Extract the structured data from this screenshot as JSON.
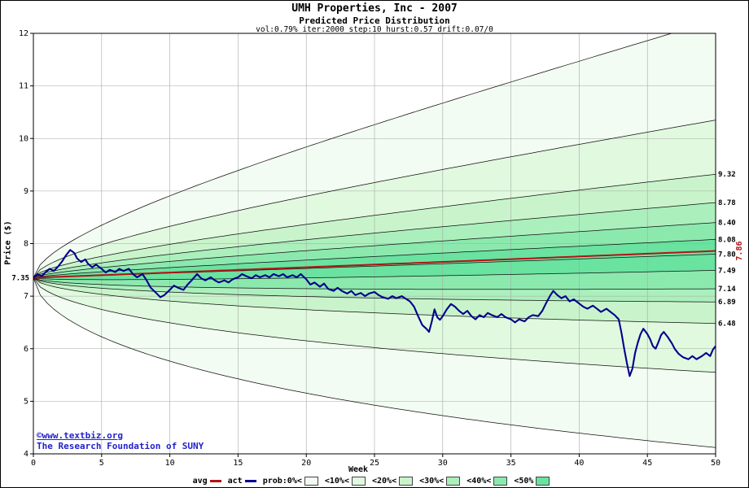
{
  "header": {
    "title": "UMH Properties, Inc - 2007",
    "subtitle": "Predicted Price Distribution",
    "params": "vol:0.79% iter:2000 step:10 hurst:0.57 drift:0.07/0"
  },
  "watermark": {
    "line1": "©www.textbiz.org",
    "line2": "The Research Foundation of SUNY",
    "color": "#2222cc"
  },
  "chart_data": {
    "type": "line",
    "title": "UMH Properties, Inc - 2007",
    "subtitle": "Predicted Price Distribution",
    "xlabel": "Week",
    "ylabel": "Price ($)",
    "xlim": [
      0,
      50
    ],
    "ylim": [
      4,
      12
    ],
    "x_ticks": [
      0,
      5,
      10,
      15,
      20,
      25,
      30,
      35,
      40,
      45,
      50
    ],
    "y_ticks": [
      4,
      5,
      6,
      7,
      8,
      9,
      10,
      11,
      12
    ],
    "grid": true,
    "hurst": 0.57,
    "volatility_pct": 0.79,
    "iterations": 2000,
    "step": 10,
    "drift": "0.07/0",
    "start_price": 7.35,
    "start_label": "7.35",
    "median_end": 7.8,
    "avg": {
      "label": "avg",
      "color": "#b01414",
      "end": 7.86,
      "end_label": "7.86"
    },
    "bands": [
      {
        "label": "prob:0%<",
        "color": "#f3fcf2",
        "upper_end": 12.25,
        "lower_end": 4.12
      },
      {
        "label": "<10%<",
        "color": "#e1f9df",
        "upper_end": 10.35,
        "lower_end": 5.55
      },
      {
        "label": "<20%<",
        "color": "#c9f4cb",
        "upper_end": 9.32,
        "lower_end": 6.48
      },
      {
        "label": "<30%<",
        "color": "#abefbd",
        "upper_end": 8.78,
        "lower_end": 6.89
      },
      {
        "label": "<40%<",
        "color": "#8ce9ae",
        "upper_end": 8.4,
        "lower_end": 7.14
      },
      {
        "label": "<50%",
        "color": "#6ae2a0",
        "upper_end": 8.08,
        "lower_end": 7.49
      }
    ],
    "right_labels": [
      "9.32",
      "8.78",
      "8.40",
      "8.08",
      "7.80",
      "7.49",
      "7.14",
      "6.89",
      "6.48"
    ],
    "actual": {
      "label": "act",
      "color": "#00008b",
      "points": [
        [
          0,
          7.35
        ],
        [
          0.3,
          7.42
        ],
        [
          0.6,
          7.38
        ],
        [
          0.9,
          7.46
        ],
        [
          1.2,
          7.52
        ],
        [
          1.5,
          7.48
        ],
        [
          1.8,
          7.56
        ],
        [
          2.1,
          7.66
        ],
        [
          2.4,
          7.78
        ],
        [
          2.7,
          7.88
        ],
        [
          3.0,
          7.82
        ],
        [
          3.2,
          7.72
        ],
        [
          3.5,
          7.65
        ],
        [
          3.8,
          7.7
        ],
        [
          4.0,
          7.62
        ],
        [
          4.3,
          7.55
        ],
        [
          4.6,
          7.6
        ],
        [
          5.0,
          7.52
        ],
        [
          5.3,
          7.45
        ],
        [
          5.6,
          7.5
        ],
        [
          6.0,
          7.46
        ],
        [
          6.3,
          7.52
        ],
        [
          6.6,
          7.48
        ],
        [
          7.0,
          7.52
        ],
        [
          7.3,
          7.42
        ],
        [
          7.6,
          7.36
        ],
        [
          8.0,
          7.42
        ],
        [
          8.3,
          7.3
        ],
        [
          8.6,
          7.16
        ],
        [
          9.0,
          7.06
        ],
        [
          9.3,
          6.98
        ],
        [
          9.6,
          7.02
        ],
        [
          10.0,
          7.12
        ],
        [
          10.3,
          7.2
        ],
        [
          10.6,
          7.16
        ],
        [
          11.0,
          7.12
        ],
        [
          11.3,
          7.22
        ],
        [
          11.6,
          7.3
        ],
        [
          12.0,
          7.42
        ],
        [
          12.3,
          7.34
        ],
        [
          12.6,
          7.3
        ],
        [
          13.0,
          7.36
        ],
        [
          13.3,
          7.3
        ],
        [
          13.6,
          7.26
        ],
        [
          14.0,
          7.3
        ],
        [
          14.3,
          7.26
        ],
        [
          14.6,
          7.32
        ],
        [
          15.0,
          7.36
        ],
        [
          15.3,
          7.42
        ],
        [
          15.6,
          7.38
        ],
        [
          16.0,
          7.34
        ],
        [
          16.3,
          7.4
        ],
        [
          16.6,
          7.36
        ],
        [
          17.0,
          7.4
        ],
        [
          17.3,
          7.36
        ],
        [
          17.6,
          7.42
        ],
        [
          18.0,
          7.38
        ],
        [
          18.3,
          7.42
        ],
        [
          18.6,
          7.36
        ],
        [
          19.0,
          7.4
        ],
        [
          19.3,
          7.36
        ],
        [
          19.6,
          7.42
        ],
        [
          20.0,
          7.32
        ],
        [
          20.3,
          7.22
        ],
        [
          20.6,
          7.26
        ],
        [
          21.0,
          7.18
        ],
        [
          21.3,
          7.24
        ],
        [
          21.6,
          7.14
        ],
        [
          22.0,
          7.1
        ],
        [
          22.3,
          7.16
        ],
        [
          22.6,
          7.1
        ],
        [
          23.0,
          7.05
        ],
        [
          23.3,
          7.1
        ],
        [
          23.6,
          7.02
        ],
        [
          24.0,
          7.06
        ],
        [
          24.3,
          7.0
        ],
        [
          24.6,
          7.05
        ],
        [
          25.0,
          7.08
        ],
        [
          25.3,
          7.02
        ],
        [
          25.6,
          6.98
        ],
        [
          26.0,
          6.95
        ],
        [
          26.3,
          7.0
        ],
        [
          26.6,
          6.96
        ],
        [
          27.0,
          7.0
        ],
        [
          27.3,
          6.95
        ],
        [
          27.6,
          6.9
        ],
        [
          27.9,
          6.8
        ],
        [
          28.2,
          6.62
        ],
        [
          28.5,
          6.45
        ],
        [
          28.8,
          6.38
        ],
        [
          29.0,
          6.32
        ],
        [
          29.2,
          6.52
        ],
        [
          29.4,
          6.75
        ],
        [
          29.6,
          6.6
        ],
        [
          29.8,
          6.55
        ],
        [
          30.0,
          6.62
        ],
        [
          30.3,
          6.75
        ],
        [
          30.6,
          6.85
        ],
        [
          30.9,
          6.8
        ],
        [
          31.2,
          6.72
        ],
        [
          31.5,
          6.66
        ],
        [
          31.8,
          6.72
        ],
        [
          32.1,
          6.62
        ],
        [
          32.4,
          6.56
        ],
        [
          32.7,
          6.64
        ],
        [
          33.0,
          6.6
        ],
        [
          33.3,
          6.68
        ],
        [
          33.6,
          6.64
        ],
        [
          34.0,
          6.6
        ],
        [
          34.3,
          6.66
        ],
        [
          34.6,
          6.6
        ],
        [
          35.0,
          6.56
        ],
        [
          35.3,
          6.5
        ],
        [
          35.6,
          6.56
        ],
        [
          36.0,
          6.52
        ],
        [
          36.3,
          6.6
        ],
        [
          36.6,
          6.64
        ],
        [
          37.0,
          6.62
        ],
        [
          37.3,
          6.72
        ],
        [
          37.6,
          6.88
        ],
        [
          37.9,
          7.02
        ],
        [
          38.1,
          7.1
        ],
        [
          38.4,
          7.02
        ],
        [
          38.7,
          6.96
        ],
        [
          39.0,
          7.0
        ],
        [
          39.3,
          6.9
        ],
        [
          39.6,
          6.94
        ],
        [
          40.0,
          6.86
        ],
        [
          40.3,
          6.8
        ],
        [
          40.6,
          6.76
        ],
        [
          41.0,
          6.82
        ],
        [
          41.3,
          6.76
        ],
        [
          41.6,
          6.7
        ],
        [
          42.0,
          6.76
        ],
        [
          42.3,
          6.7
        ],
        [
          42.6,
          6.64
        ],
        [
          42.9,
          6.56
        ],
        [
          43.1,
          6.3
        ],
        [
          43.3,
          6.0
        ],
        [
          43.5,
          5.72
        ],
        [
          43.7,
          5.48
        ],
        [
          43.9,
          5.62
        ],
        [
          44.1,
          5.92
        ],
        [
          44.3,
          6.12
        ],
        [
          44.5,
          6.28
        ],
        [
          44.7,
          6.38
        ],
        [
          45.0,
          6.28
        ],
        [
          45.2,
          6.18
        ],
        [
          45.4,
          6.05
        ],
        [
          45.6,
          6.0
        ],
        [
          45.8,
          6.12
        ],
        [
          46.0,
          6.26
        ],
        [
          46.2,
          6.32
        ],
        [
          46.5,
          6.22
        ],
        [
          46.8,
          6.1
        ],
        [
          47.0,
          6.0
        ],
        [
          47.3,
          5.9
        ],
        [
          47.6,
          5.84
        ],
        [
          48.0,
          5.8
        ],
        [
          48.3,
          5.86
        ],
        [
          48.6,
          5.8
        ],
        [
          49.0,
          5.86
        ],
        [
          49.3,
          5.92
        ],
        [
          49.6,
          5.86
        ],
        [
          49.8,
          5.98
        ],
        [
          50.0,
          6.05
        ]
      ]
    }
  },
  "legend": {
    "items": [
      {
        "label": "avg",
        "type": "line",
        "color": "#b01414"
      },
      {
        "label": "act",
        "type": "line",
        "color": "#00008b"
      },
      {
        "label": "prob:0%<",
        "type": "box",
        "color": "#f3fcf2"
      },
      {
        "label": "<10%<",
        "type": "box",
        "color": "#e1f9df"
      },
      {
        "label": "<20%<",
        "type": "box",
        "color": "#c9f4cb"
      },
      {
        "label": "<30%<",
        "type": "box",
        "color": "#abefbd"
      },
      {
        "label": "<40%<",
        "type": "box",
        "color": "#8ce9ae"
      },
      {
        "label": "<50%",
        "type": "box",
        "color": "#6ae2a0"
      }
    ]
  }
}
